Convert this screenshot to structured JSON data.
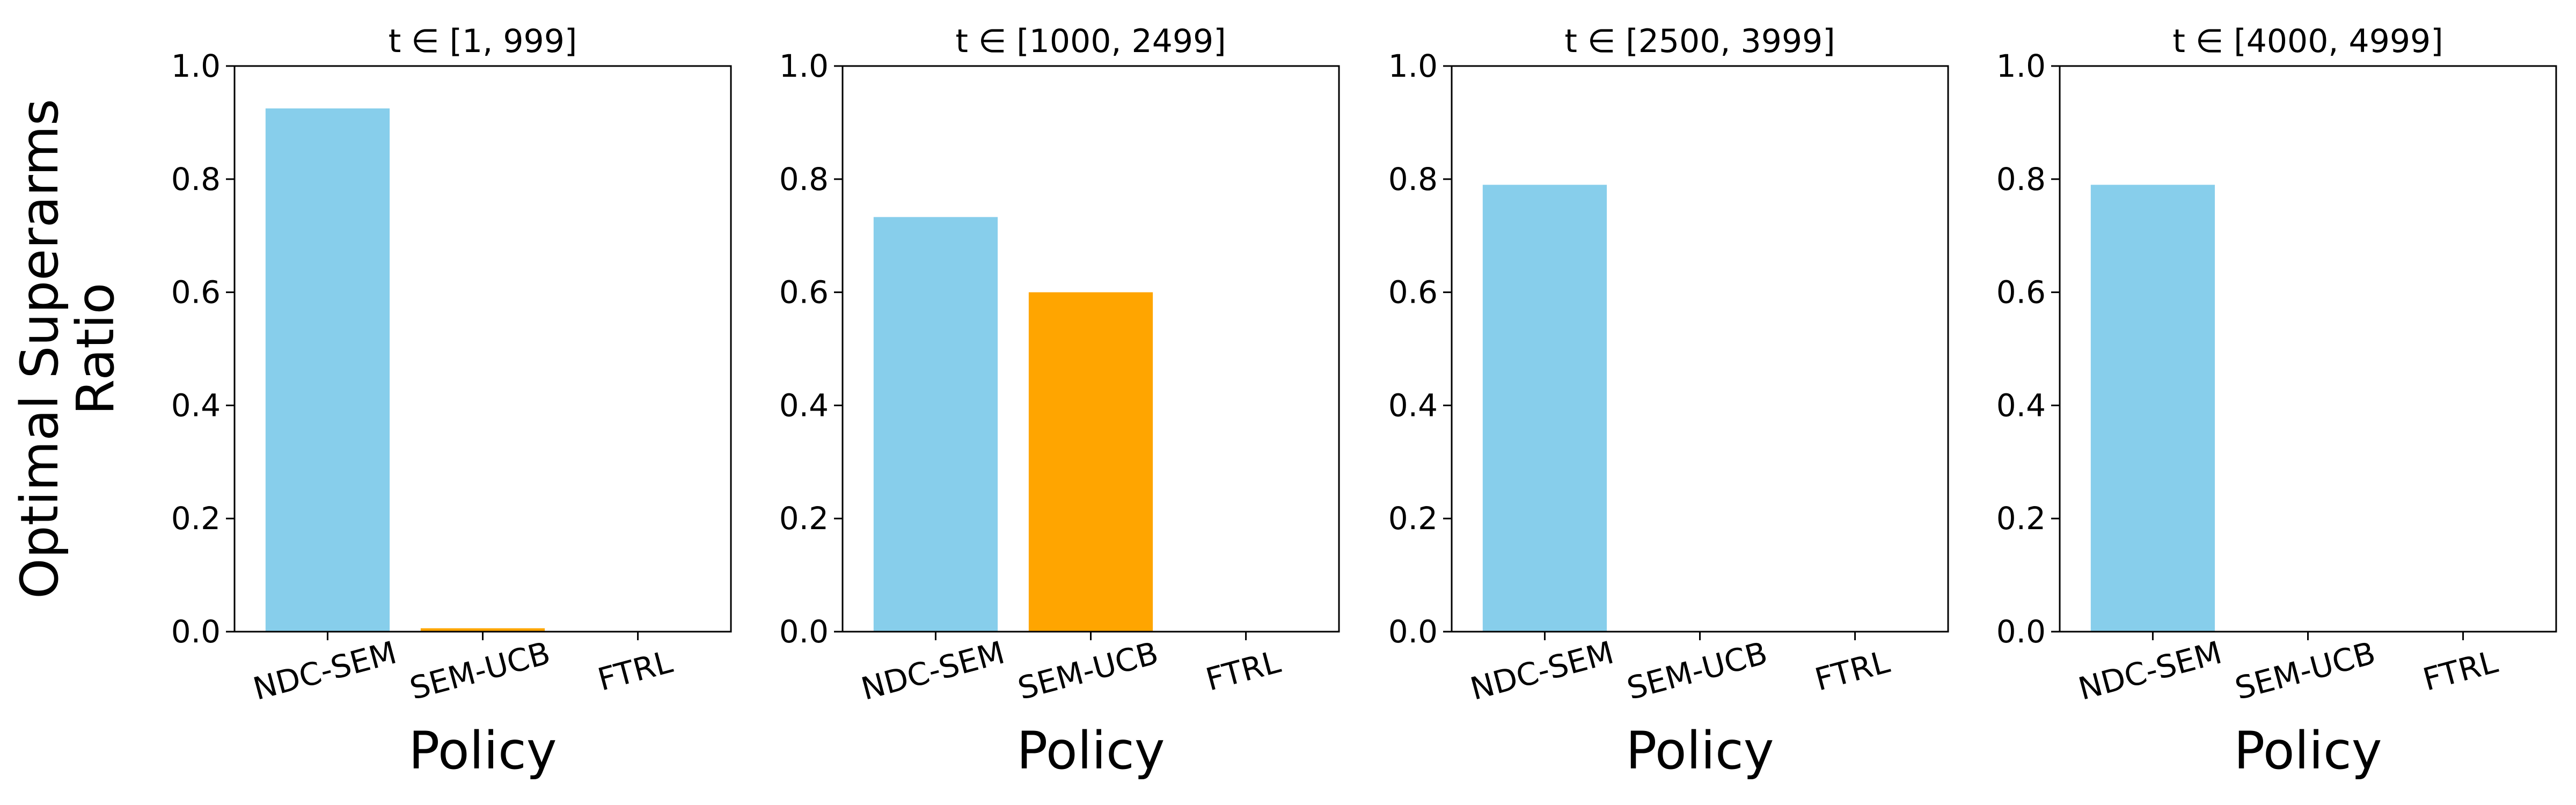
{
  "chart_data": [
    {
      "type": "bar",
      "title": "t ∈ [1, 999]",
      "categories": [
        "NDC-SEM",
        "SEM-UCB",
        "FTRL"
      ],
      "values": [
        0.925,
        0.006,
        0.0
      ],
      "bar_colors": [
        "#87CEEB",
        "#FFA500",
        "#FFFF66"
      ],
      "xlabel": "Policy",
      "ylabel": "Optimal Superarms\nRatio",
      "ylim": [
        0,
        1.0
      ],
      "yticks": [
        "0.0",
        "0.2",
        "0.4",
        "0.6",
        "0.8",
        "1.0"
      ],
      "grid": false,
      "legend": "none"
    },
    {
      "type": "bar",
      "title": "t ∈ [1000, 2499]",
      "categories": [
        "NDC-SEM",
        "SEM-UCB",
        "FTRL"
      ],
      "values": [
        0.733,
        0.6,
        0.0
      ],
      "bar_colors": [
        "#87CEEB",
        "#FFA500",
        "#FFFF66"
      ],
      "xlabel": "Policy",
      "ylabel": "",
      "ylim": [
        0,
        1.0
      ],
      "yticks": [
        "0.0",
        "0.2",
        "0.4",
        "0.6",
        "0.8",
        "1.0"
      ],
      "grid": false,
      "legend": "none"
    },
    {
      "type": "bar",
      "title": "t ∈ [2500, 3999]",
      "categories": [
        "NDC-SEM",
        "SEM-UCB",
        "FTRL"
      ],
      "values": [
        0.79,
        0.001,
        0.0
      ],
      "bar_colors": [
        "#87CEEB",
        "#FFA500",
        "#FFFF66"
      ],
      "xlabel": "Policy",
      "ylabel": "",
      "ylim": [
        0,
        1.0
      ],
      "yticks": [
        "0.0",
        "0.2",
        "0.4",
        "0.6",
        "0.8",
        "1.0"
      ],
      "grid": false,
      "legend": "none"
    },
    {
      "type": "bar",
      "title": "t ∈ [4000, 4999]",
      "categories": [
        "NDC-SEM",
        "SEM-UCB",
        "FTRL"
      ],
      "values": [
        0.79,
        0.001,
        0.0
      ],
      "bar_colors": [
        "#87CEEB",
        "#FFA500",
        "#FFFF66"
      ],
      "xlabel": "Policy",
      "ylabel": "",
      "ylim": [
        0,
        1.0
      ],
      "yticks": [
        "0.0",
        "0.2",
        "0.4",
        "0.6",
        "0.8",
        "1.0"
      ],
      "grid": false,
      "legend": "none"
    }
  ]
}
